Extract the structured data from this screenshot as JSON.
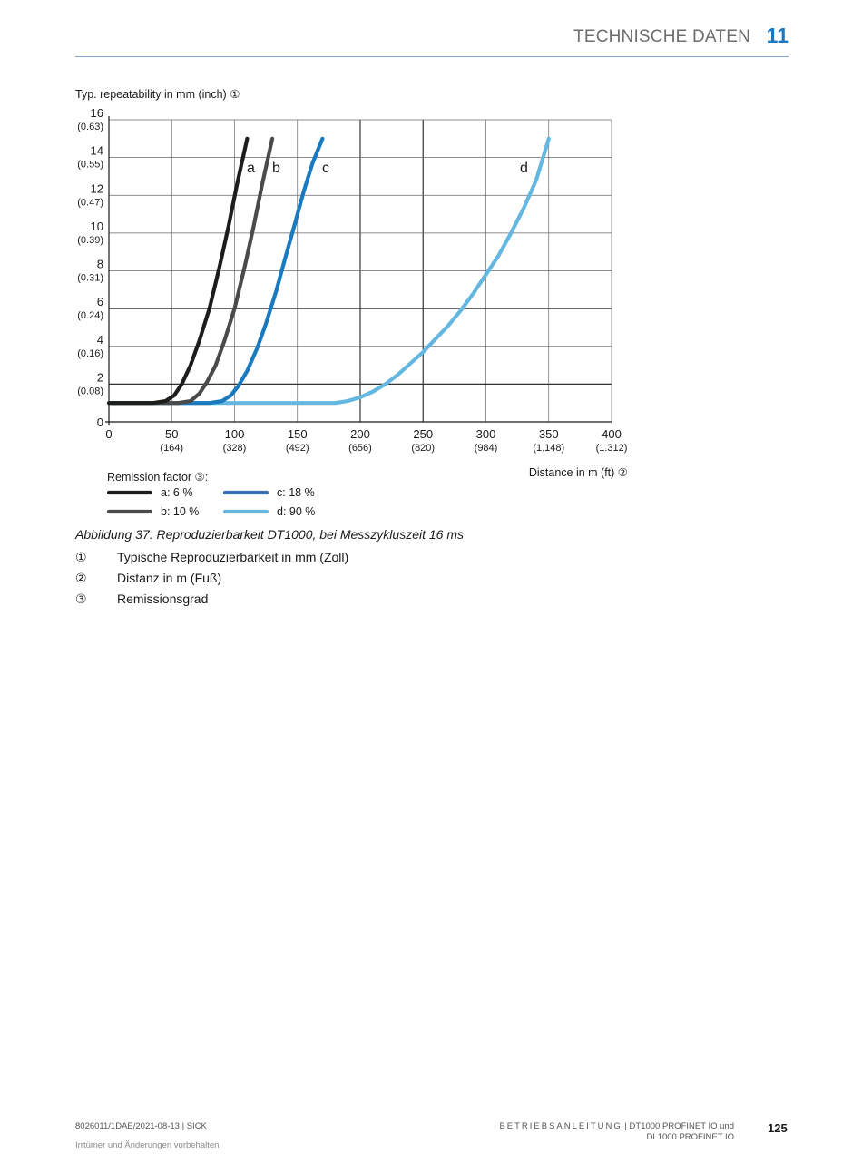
{
  "header": {
    "title": "TECHNISCHE DATEN",
    "chapter": "11"
  },
  "chart_data": {
    "type": "line",
    "ylabel": "Typ. repeatability in mm (inch) ①",
    "xlabel": "Distance in m (ft) ②",
    "xlim": [
      0,
      400
    ],
    "ylim": [
      0,
      16
    ],
    "grid": true,
    "x_ticks": [
      "0",
      "50",
      "100",
      "150",
      "200",
      "250",
      "300",
      "350",
      "400"
    ],
    "x_ticks_ft": [
      "",
      "(164)",
      "(328)",
      "(492)",
      "(656)",
      "(820)",
      "(984)",
      "(1.148)",
      "(1.312)"
    ],
    "y_ticks": [
      "0",
      "2",
      "4",
      "6",
      "8",
      "10",
      "12",
      "14",
      "16"
    ],
    "y_ticks_inch": [
      "",
      "(0.08)",
      "(0.16)",
      "(0.24)",
      "(0.31)",
      "(0.39)",
      "(0.47)",
      "(0.55)",
      "(0.63)"
    ],
    "legend_title": "Remission factor ③:",
    "series": [
      {
        "name": "a: 6 %",
        "label": "a",
        "color": "#1d1d1b",
        "x": [
          0,
          35,
          45,
          52,
          58,
          65,
          72,
          80,
          88,
          95,
          102,
          110
        ],
        "y": [
          1,
          1,
          1.1,
          1.4,
          2,
          3,
          4.3,
          6,
          8.2,
          10.3,
          12.6,
          15
        ]
      },
      {
        "name": "b: 10 %",
        "label": "b",
        "color": "#4a4a4a",
        "x": [
          0,
          55,
          65,
          72,
          78,
          85,
          92,
          100,
          108,
          115,
          122,
          130
        ],
        "y": [
          1,
          1,
          1.1,
          1.5,
          2.1,
          3,
          4.3,
          6,
          8.2,
          10.3,
          12.6,
          15
        ]
      },
      {
        "name": "c: 18 %",
        "label": "c",
        "color": "#1a7ac0",
        "x": [
          0,
          80,
          90,
          97,
          103,
          110,
          118,
          125,
          133,
          140,
          148,
          155,
          162,
          170
        ],
        "y": [
          1,
          1,
          1.1,
          1.4,
          1.9,
          2.7,
          3.9,
          5.2,
          6.9,
          8.6,
          10.5,
          12.2,
          13.7,
          15
        ]
      },
      {
        "name": "d: 90 %",
        "label": "d",
        "color": "#63b7e0",
        "x": [
          0,
          180,
          190,
          200,
          210,
          220,
          230,
          240,
          250,
          260,
          270,
          280,
          290,
          300,
          310,
          320,
          330,
          340,
          350
        ],
        "y": [
          1,
          1,
          1.1,
          1.3,
          1.6,
          2,
          2.5,
          3.1,
          3.7,
          4.4,
          5.1,
          5.9,
          6.8,
          7.8,
          8.8,
          10,
          11.3,
          12.8,
          15
        ]
      }
    ],
    "legend_ramp_color": "#3a6fb0"
  },
  "caption": "Abbildung 37: Reproduzierbarkeit DT1000, bei Messzykluszeit 16 ms",
  "legend_items": [
    {
      "mark": "①",
      "text": "Typische Reproduzierbarkeit in mm (Zoll)"
    },
    {
      "mark": "②",
      "text": "Distanz in m (Fuß)"
    },
    {
      "mark": "③",
      "text": "Remissionsgrad"
    }
  ],
  "footer": {
    "doc_id": "8026011/1DAE/2021-08-13 | SICK",
    "disclaimer": "Irrtümer und Änderungen vorbehalten",
    "manual": "BETRIEBSANLEITUNG",
    "product_line1": " | DT1000 PROFINET IO und",
    "product_line2": "DL1000 PROFINET IO",
    "page": "125"
  }
}
